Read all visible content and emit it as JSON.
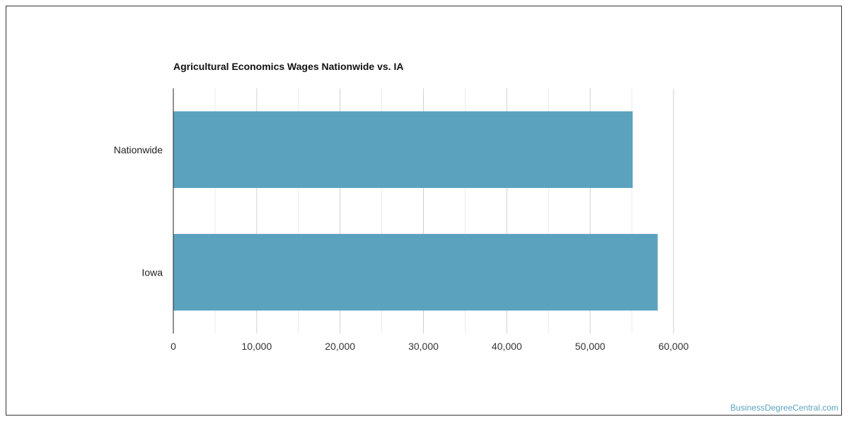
{
  "chart_data": {
    "type": "bar",
    "orientation": "horizontal",
    "title": "Agricultural Economics Wages Nationwide vs. IA",
    "categories": [
      "Nationwide",
      "Iowa"
    ],
    "values": [
      55100,
      58100
    ],
    "xlim": [
      0,
      60000
    ],
    "xticks": [
      0,
      10000,
      20000,
      30000,
      40000,
      50000,
      60000
    ],
    "xtick_labels": [
      "0",
      "10,000",
      "20,000",
      "30,000",
      "40,000",
      "50,000",
      "60,000"
    ],
    "grid": true,
    "bar_color": "#5ba2bf"
  },
  "watermark": {
    "text": "BusinessDegreeCentral.com",
    "color": "#5ba2bf"
  }
}
